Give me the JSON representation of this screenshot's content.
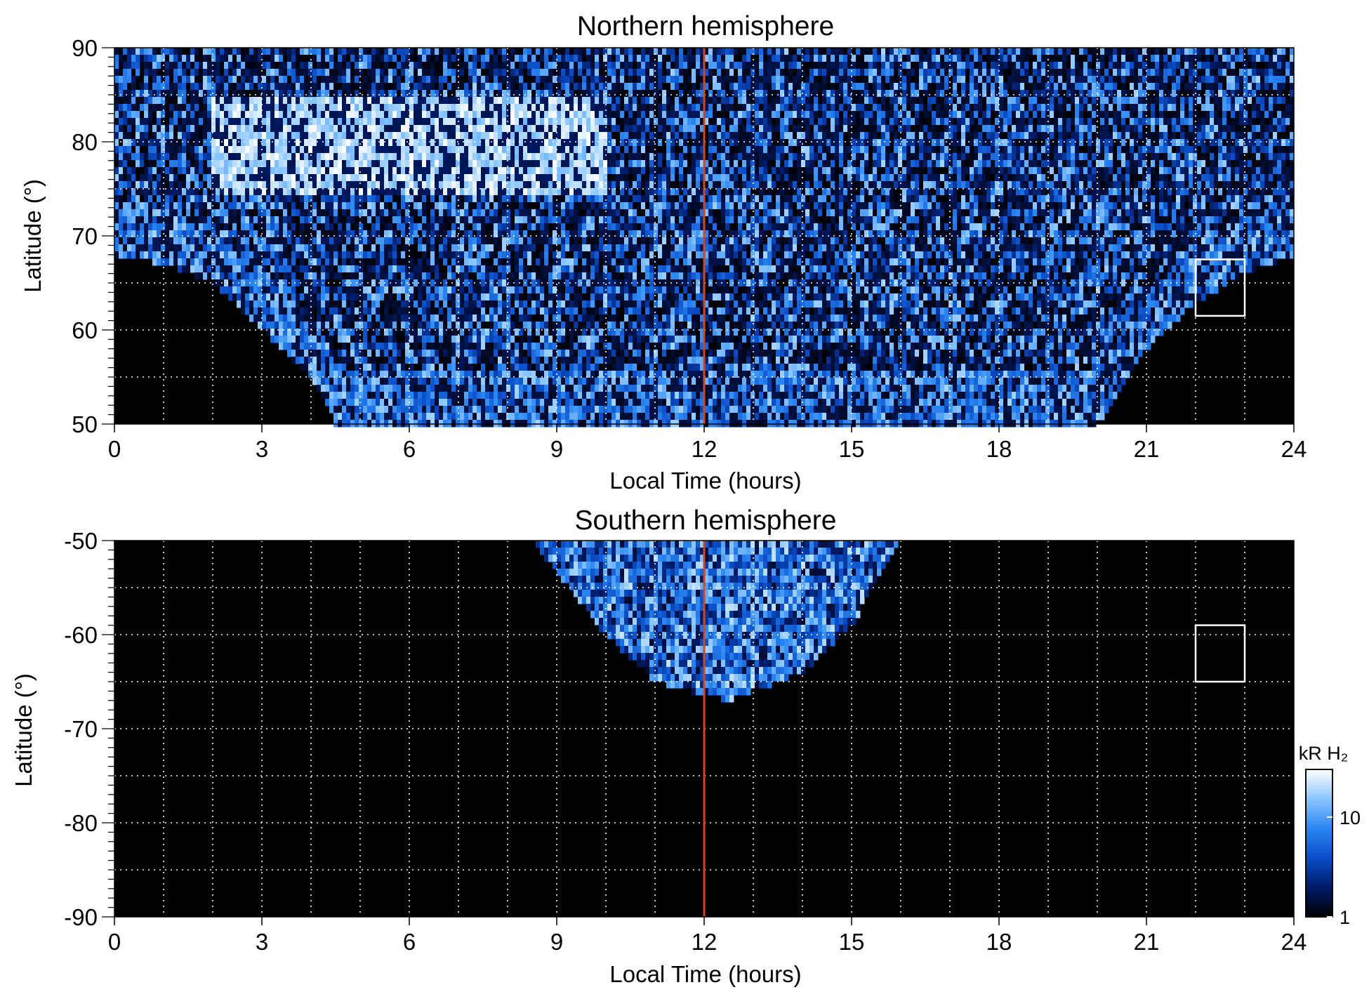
{
  "chart_data": [
    {
      "type": "heatmap",
      "title": "Northern hemisphere",
      "xlabel": "Local Time (hours)",
      "ylabel": "Latitude (°)",
      "xlim": [
        0,
        24
      ],
      "ylim": [
        50,
        90
      ],
      "x_ticks": [
        "0",
        "3",
        "6",
        "9",
        "12",
        "15",
        "18",
        "21",
        "24"
      ],
      "y_ticks": [
        "50",
        "60",
        "70",
        "80",
        "90"
      ],
      "x_tick_values": [
        0,
        3,
        6,
        9,
        12,
        15,
        18,
        21,
        24
      ],
      "y_tick_values": [
        50,
        60,
        70,
        80,
        90
      ],
      "grid": true,
      "grid_x_step": 1,
      "grid_y_step": 5,
      "marker_line": {
        "x": 12,
        "color": "#d2461e"
      },
      "box": {
        "x": [
          22,
          23
        ],
        "y": [
          61.5,
          67.5
        ],
        "color": "#ffffff"
      },
      "coverage_boundary": [
        {
          "lt": 0,
          "lat": 68
        },
        {
          "lt": 1,
          "lat": 67
        },
        {
          "lt": 2,
          "lat": 65
        },
        {
          "lt": 3,
          "lat": 60
        },
        {
          "lt": 4,
          "lat": 55
        },
        {
          "lt": 4.5,
          "lat": 50
        },
        {
          "lt": 20,
          "lat": 50
        },
        {
          "lt": 21,
          "lat": 58
        },
        {
          "lt": 22,
          "lat": 63
        },
        {
          "lt": 23,
          "lat": 66
        },
        {
          "lt": 24,
          "lat": 68
        }
      ],
      "bright_region": {
        "lt": [
          2,
          10
        ],
        "lat": [
          74,
          85
        ]
      }
    },
    {
      "type": "heatmap",
      "title": "Southern hemisphere",
      "xlabel": "Local Time (hours)",
      "ylabel": "Latitude (°)",
      "xlim": [
        0,
        24
      ],
      "ylim": [
        -90,
        -50
      ],
      "x_ticks": [
        "0",
        "3",
        "6",
        "9",
        "12",
        "15",
        "18",
        "21",
        "24"
      ],
      "y_ticks": [
        "-90",
        "-80",
        "-70",
        "-60",
        "-50"
      ],
      "x_tick_values": [
        0,
        3,
        6,
        9,
        12,
        15,
        18,
        21,
        24
      ],
      "y_tick_values": [
        -90,
        -80,
        -70,
        -60,
        -50
      ],
      "grid": true,
      "grid_x_step": 1,
      "grid_y_step": 5,
      "marker_line": {
        "x": 12,
        "color": "#d2461e"
      },
      "box": {
        "x": [
          22,
          23
        ],
        "y": [
          -65,
          -59
        ],
        "color": "#ffffff"
      },
      "coverage_boundary": [
        {
          "lt": 8.5,
          "lat": -50
        },
        {
          "lt": 10,
          "lat": -60
        },
        {
          "lt": 11,
          "lat": -65
        },
        {
          "lt": 12.5,
          "lat": -67
        },
        {
          "lt": 14,
          "lat": -64
        },
        {
          "lt": 15,
          "lat": -59
        },
        {
          "lt": 16,
          "lat": -50
        }
      ]
    }
  ],
  "colorbar": {
    "label": "kR H₂",
    "scale": "log",
    "range": [
      1,
      30
    ],
    "ticks": [
      {
        "value": 1,
        "label": "1"
      },
      {
        "value": 10,
        "label": "10"
      }
    ],
    "colors": [
      "#000000",
      "#001a66",
      "#0a4ec8",
      "#2a86f2",
      "#8ac6ff",
      "#ffffff"
    ]
  }
}
